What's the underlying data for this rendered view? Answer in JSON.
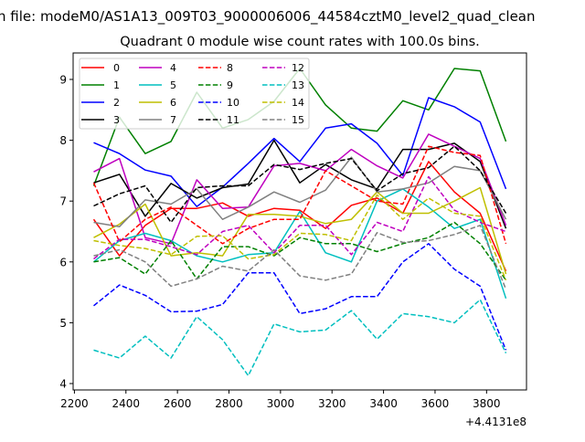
{
  "figure": {
    "suptitle": "n file: modeM0/AS1A13_009T03_9000006006_44584cztM0_level2_quad_clean",
    "offset_label": "+4.4131e8"
  },
  "chart_data": {
    "type": "line",
    "title": "Quadrant 0 module wise count rates with 100.0s bins.",
    "xlabel": "",
    "ylabel": "",
    "xlim": [
      2195,
      3955
    ],
    "ylim": [
      3.895,
      9.435
    ],
    "xticks": [
      2200,
      2400,
      2600,
      2800,
      3000,
      3200,
      3400,
      3600,
      3800
    ],
    "yticks": [
      4,
      5,
      6,
      7,
      8,
      9
    ],
    "x_offset": "+4.4131e8",
    "legend_placement": "top-left",
    "grid": false,
    "x": [
      2275,
      2375,
      2475,
      2575,
      2675,
      2775,
      2875,
      2975,
      3075,
      3175,
      3275,
      3375,
      3475,
      3575,
      3675,
      3775,
      3875
    ],
    "series": [
      {
        "name": "0",
        "color": "#ff0000",
        "dash": false,
        "values": [
          6.7,
          6.1,
          6.6,
          6.88,
          6.88,
          6.97,
          6.75,
          6.88,
          6.85,
          6.55,
          6.93,
          7.05,
          6.8,
          7.65,
          7.15,
          6.8,
          5.85
        ]
      },
      {
        "name": "1",
        "color": "#008000",
        "dash": false,
        "values": [
          7.25,
          8.38,
          7.78,
          7.98,
          8.79,
          8.2,
          8.34,
          8.64,
          9.18,
          8.58,
          8.2,
          8.15,
          8.65,
          8.5,
          9.18,
          9.14,
          7.98
        ]
      },
      {
        "name": "2",
        "color": "#0000ff",
        "dash": false,
        "values": [
          7.96,
          7.78,
          7.51,
          7.41,
          6.91,
          7.23,
          7.62,
          8.03,
          7.65,
          8.2,
          8.27,
          7.95,
          7.42,
          8.7,
          8.55,
          8.3,
          7.2
        ]
      },
      {
        "name": "3",
        "color": "#000000",
        "dash": false,
        "values": [
          7.3,
          7.44,
          6.75,
          7.29,
          7.05,
          7.22,
          7.28,
          8.0,
          7.3,
          7.6,
          7.35,
          7.2,
          7.85,
          7.85,
          7.95,
          7.65,
          6.55
        ]
      },
      {
        "name": "4",
        "color": "#bf00bf",
        "dash": false,
        "values": [
          7.48,
          7.7,
          6.4,
          6.3,
          7.35,
          6.88,
          6.9,
          7.58,
          7.62,
          7.5,
          7.85,
          7.58,
          7.38,
          8.1,
          7.9,
          7.7,
          6.6
        ]
      },
      {
        "name": "5",
        "color": "#00bfbf",
        "dash": false,
        "values": [
          6.0,
          6.35,
          6.47,
          6.35,
          6.1,
          6.0,
          6.12,
          6.15,
          6.83,
          6.15,
          6.0,
          7.0,
          7.2,
          6.9,
          6.55,
          6.7,
          5.4
        ]
      },
      {
        "name": "6",
        "color": "#bfbf00",
        "dash": false,
        "values": [
          6.4,
          6.62,
          6.95,
          6.1,
          6.15,
          6.1,
          6.78,
          6.78,
          6.75,
          6.63,
          6.7,
          7.15,
          6.8,
          6.8,
          7.0,
          7.22,
          5.8
        ]
      },
      {
        "name": "7",
        "color": "#808080",
        "dash": false,
        "values": [
          6.65,
          6.58,
          7.02,
          6.95,
          7.2,
          6.7,
          6.9,
          7.15,
          6.98,
          7.18,
          7.72,
          7.15,
          7.2,
          7.3,
          7.57,
          7.5,
          6.7
        ]
      },
      {
        "name": "8",
        "color": "#ff0000",
        "dash": true,
        "values": [
          7.3,
          6.33,
          6.7,
          6.9,
          6.6,
          6.3,
          6.55,
          6.7,
          6.7,
          7.5,
          7.25,
          7.0,
          6.95,
          7.9,
          7.8,
          7.75,
          6.3
        ]
      },
      {
        "name": "9",
        "color": "#008000",
        "dash": true,
        "values": [
          6.0,
          6.07,
          5.8,
          6.35,
          5.72,
          6.25,
          6.25,
          6.1,
          6.4,
          6.3,
          6.3,
          6.17,
          6.3,
          6.4,
          6.65,
          6.3,
          5.7
        ]
      },
      {
        "name": "10",
        "color": "#0000ff",
        "dash": true,
        "values": [
          5.28,
          5.62,
          5.45,
          5.18,
          5.19,
          5.3,
          5.82,
          5.82,
          5.15,
          5.23,
          5.43,
          5.43,
          6.0,
          6.3,
          5.88,
          5.6,
          4.55
        ]
      },
      {
        "name": "11",
        "color": "#000000",
        "dash": true,
        "values": [
          6.92,
          7.12,
          7.25,
          6.65,
          7.22,
          7.25,
          7.25,
          7.6,
          7.52,
          7.62,
          7.7,
          7.17,
          7.45,
          7.55,
          7.9,
          7.5,
          6.8
        ]
      },
      {
        "name": "12",
        "color": "#bf00bf",
        "dash": true,
        "values": [
          6.05,
          6.37,
          6.37,
          6.25,
          6.12,
          6.5,
          6.6,
          6.15,
          6.6,
          6.6,
          6.12,
          6.65,
          6.5,
          7.4,
          6.85,
          6.65,
          6.5
        ]
      },
      {
        "name": "13",
        "color": "#00bfbf",
        "dash": true,
        "values": [
          4.55,
          4.42,
          4.78,
          4.42,
          5.1,
          4.72,
          4.13,
          4.98,
          4.85,
          4.88,
          5.2,
          4.73,
          5.15,
          5.1,
          5.0,
          5.38,
          4.5
        ]
      },
      {
        "name": "14",
        "color": "#bfbf00",
        "dash": true,
        "values": [
          6.35,
          6.27,
          6.22,
          6.12,
          6.42,
          6.43,
          6.05,
          6.12,
          6.47,
          6.45,
          6.35,
          7.1,
          6.7,
          7.05,
          6.8,
          6.75,
          5.7
        ]
      },
      {
        "name": "15",
        "color": "#808080",
        "dash": true,
        "values": [
          6.1,
          6.2,
          6.0,
          5.6,
          5.72,
          5.93,
          5.85,
          6.2,
          5.77,
          5.7,
          5.8,
          6.48,
          6.32,
          6.35,
          6.45,
          6.6,
          5.55
        ]
      }
    ]
  }
}
